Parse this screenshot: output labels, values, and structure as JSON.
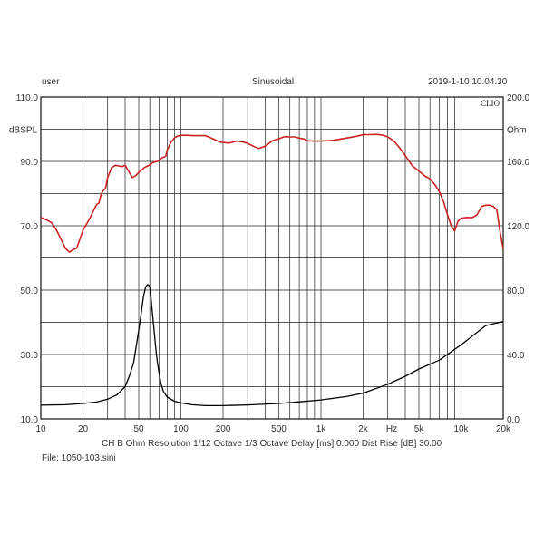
{
  "header": {
    "user": "user",
    "mode": "Sinusoidal",
    "timestamp": "2019-1-10 10.04.30",
    "brand": "CLIO"
  },
  "footer": {
    "line1": "CH B   Ohm   Resolution 1/12 Octave   1/3 Octave   Delay [ms] 0.000   Dist Rise [dB] 30.00",
    "file": "File: 1050-103.sini"
  },
  "chart_data": {
    "type": "line",
    "title": "",
    "xscale": "log",
    "xlim": [
      10,
      20000
    ],
    "ylim_left": [
      10,
      110
    ],
    "ylim_right": [
      0,
      200
    ],
    "ylabel_left": "dBSPL",
    "ylabel_right": "Ohm",
    "xlabel": "Hz",
    "grid": true,
    "x_ticks": [
      "10",
      "20",
      "50",
      "100",
      "200",
      "500",
      "1k",
      "2k",
      "5k",
      "10k",
      "20k"
    ],
    "y_ticks_left": [
      "110.0",
      "90.0",
      "70.0",
      "50.0",
      "30.0",
      "10.0"
    ],
    "y_ticks_right": [
      "200.0",
      "160.0",
      "120.0",
      "80.0",
      "40.0",
      "0.0"
    ],
    "series": [
      {
        "axis": "left",
        "color": "#cc2222",
        "x": [
          10,
          11,
          12,
          13,
          14,
          15,
          16,
          17,
          18,
          19,
          20,
          22,
          24,
          25,
          26,
          27,
          28,
          29,
          30,
          32,
          34,
          36,
          38,
          40,
          42,
          45,
          48,
          50,
          52,
          55,
          58,
          60,
          63,
          68,
          73,
          78,
          80,
          85,
          90,
          95,
          100,
          110,
          120,
          130,
          150,
          170,
          190,
          200,
          220,
          250,
          280,
          300,
          330,
          360,
          400,
          450,
          500,
          550,
          600,
          650,
          700,
          750,
          800,
          900,
          1000,
          1200,
          1500,
          1800,
          2000,
          2200,
          2500,
          2800,
          3000,
          3300,
          3600,
          4000,
          4500,
          5000,
          5500,
          6000,
          6500,
          7000,
          7500,
          8000,
          8500,
          9000,
          9500,
          10000,
          11000,
          12000,
          13000,
          14000,
          15000,
          16000,
          17000,
          18000,
          19000,
          20000
        ],
        "y": [
          72.6,
          71.8,
          70.9,
          68.5,
          65.6,
          63.0,
          61.8,
          62.6,
          63.0,
          65.8,
          68.6,
          71.7,
          75.0,
          76.6,
          77.1,
          79.9,
          81.0,
          81.7,
          85.0,
          88.0,
          88.8,
          88.6,
          88.4,
          88.8,
          87.2,
          85.0,
          85.7,
          86.6,
          87.2,
          88.1,
          88.6,
          88.9,
          89.6,
          90.0,
          91.0,
          91.6,
          93.6,
          96.0,
          97.3,
          97.9,
          98.1,
          98.1,
          98.0,
          98.0,
          98.0,
          97.0,
          96.0,
          95.9,
          95.7,
          96.3,
          96.0,
          95.6,
          94.7,
          94.0,
          94.7,
          96.4,
          97.0,
          97.7,
          97.6,
          97.6,
          97.2,
          97.0,
          96.4,
          96.3,
          96.3,
          96.5,
          97.2,
          97.8,
          98.3,
          98.3,
          98.4,
          98.1,
          97.6,
          96.4,
          94.5,
          91.8,
          88.6,
          87.0,
          85.5,
          84.6,
          82.8,
          80.6,
          77.5,
          73.5,
          70.0,
          68.4,
          71.4,
          72.3,
          72.6,
          72.5,
          73.4,
          76.0,
          76.4,
          76.4,
          76.0,
          75.0,
          68.0,
          62.8
        ]
      },
      {
        "axis": "right",
        "color": "#000000",
        "x": [
          10,
          15,
          20,
          25,
          30,
          35,
          40,
          43,
          46,
          48,
          50,
          52,
          54,
          56,
          58,
          59,
          60,
          61,
          62,
          64,
          66,
          68,
          70,
          72,
          75,
          80,
          90,
          100,
          120,
          150,
          200,
          300,
          500,
          700,
          1000,
          1500,
          2000,
          3000,
          4000,
          5000,
          7000,
          10000,
          15000,
          20000
        ],
        "y": [
          8.5,
          8.8,
          9.6,
          10.5,
          12.2,
          15.0,
          20.0,
          27.0,
          35.0,
          45.0,
          55.0,
          65.0,
          76.0,
          82.0,
          83.5,
          83.0,
          82.0,
          77.0,
          70.0,
          57.0,
          45.0,
          35.0,
          28.0,
          22.0,
          17.0,
          13.5,
          11.0,
          10.0,
          8.8,
          8.2,
          8.2,
          8.7,
          9.6,
          10.6,
          11.8,
          13.8,
          16.0,
          21.5,
          26.5,
          31.0,
          36.5,
          46.0,
          58.0,
          60.5
        ]
      }
    ]
  }
}
